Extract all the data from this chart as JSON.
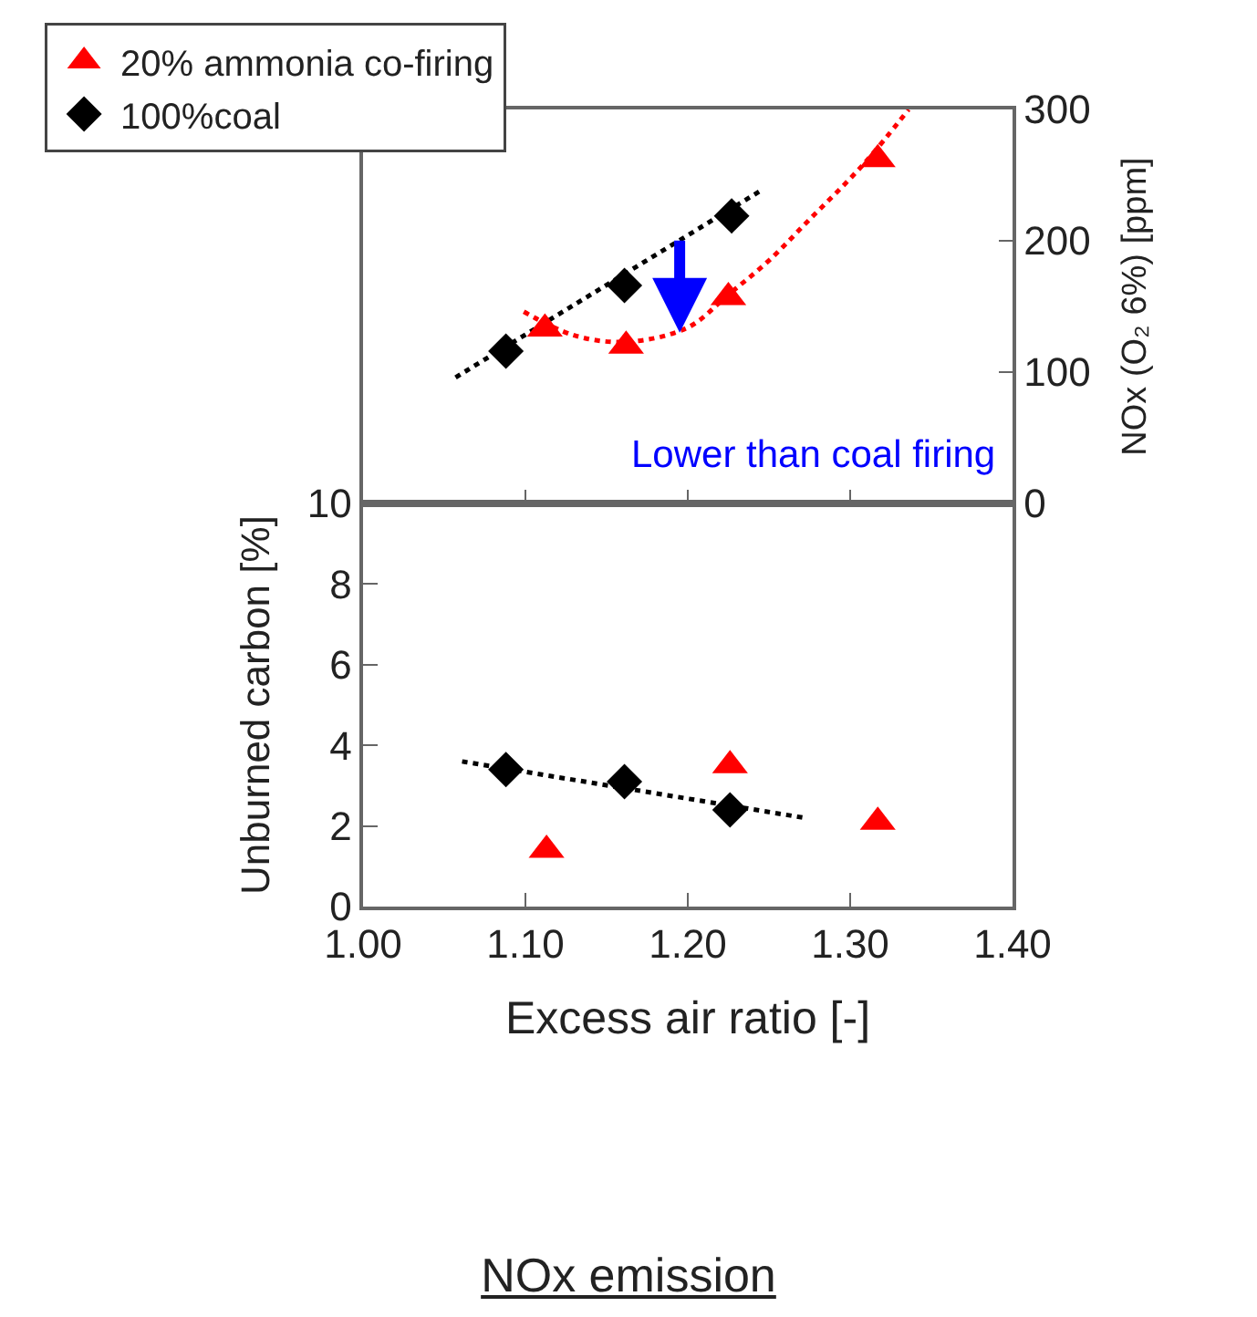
{
  "chart_data": [
    {
      "type": "scatter",
      "ylabel": "NOx (O₂ 6%) [ppm]",
      "xlim": [
        1.0,
        1.4
      ],
      "xticks": [
        {
          "value": 1.0,
          "label": null
        },
        {
          "value": 1.1,
          "label": null
        },
        {
          "value": 1.2,
          "label": null
        },
        {
          "value": 1.3,
          "label": null
        },
        {
          "value": 1.4,
          "label": null
        }
      ],
      "ylim": [
        0,
        300
      ],
      "yticks": [
        0,
        100,
        200,
        300
      ],
      "tick_labels": "y",
      "legend": "top left",
      "grid": false,
      "annotations": [
        {
          "text": "Lower than coal firing",
          "x": 1.195,
          "y": 130
        }
      ],
      "series": [
        {
          "type": "line",
          "color": "#ff0000",
          "marker": "none",
          "line_style": "dotted",
          "x": [
            1.099,
            1.13,
            1.162,
            1.2,
            1.225,
            1.25,
            1.274,
            1.308,
            1.336
          ],
          "values": [
            146,
            128,
            123,
            134,
            159,
            185,
            215,
            258,
            300
          ]
        },
        {
          "type": "line",
          "color": "#000000",
          "marker": "none",
          "line_style": "dotted",
          "x": [
            1.057,
            1.246
          ],
          "values": [
            96,
            239
          ]
        },
        {
          "name": "20% ammonia co-firing",
          "color": "#ff0000",
          "marker": "triangle",
          "x": [
            1.112,
            1.162,
            1.225,
            1.317
          ],
          "values": [
            133,
            120,
            157,
            262
          ]
        },
        {
          "name": "100%coal",
          "color": "#000000",
          "marker": "diamond",
          "x": [
            1.088,
            1.161,
            1.227
          ],
          "values": [
            116,
            166,
            219
          ]
        }
      ]
    },
    {
      "type": "scatter",
      "title": "NOx emission",
      "xlabel": "Excess air ratio [-]",
      "ylabel": "Unburned carbon [%]",
      "xlim": [
        1.0,
        1.4
      ],
      "xticks": [
        {
          "value": 1.0,
          "label": "1.00"
        },
        {
          "value": 1.1,
          "label": "1.10"
        },
        {
          "value": 1.2,
          "label": "1.20"
        },
        {
          "value": 1.3,
          "label": "1.30"
        },
        {
          "value": 1.4,
          "label": "1.40"
        }
      ],
      "ylim": [
        0,
        10
      ],
      "yticks": [
        0,
        2,
        4,
        6,
        8,
        10
      ],
      "grid": false,
      "series": [
        {
          "type": "line",
          "color": "#000000",
          "marker": "none",
          "line_style": "dotted",
          "x": [
            1.061,
            1.272
          ],
          "values": [
            3.6,
            2.2
          ]
        },
        {
          "color": "#ff0000",
          "marker": "triangle",
          "x": [
            1.113,
            1.226,
            1.317
          ],
          "values": [
            1.4,
            3.5,
            2.1
          ]
        },
        {
          "color": "#000000",
          "marker": "diamond",
          "x": [
            1.088,
            1.161,
            1.226
          ],
          "values": [
            3.4,
            3.1,
            2.4
          ]
        }
      ]
    }
  ]
}
